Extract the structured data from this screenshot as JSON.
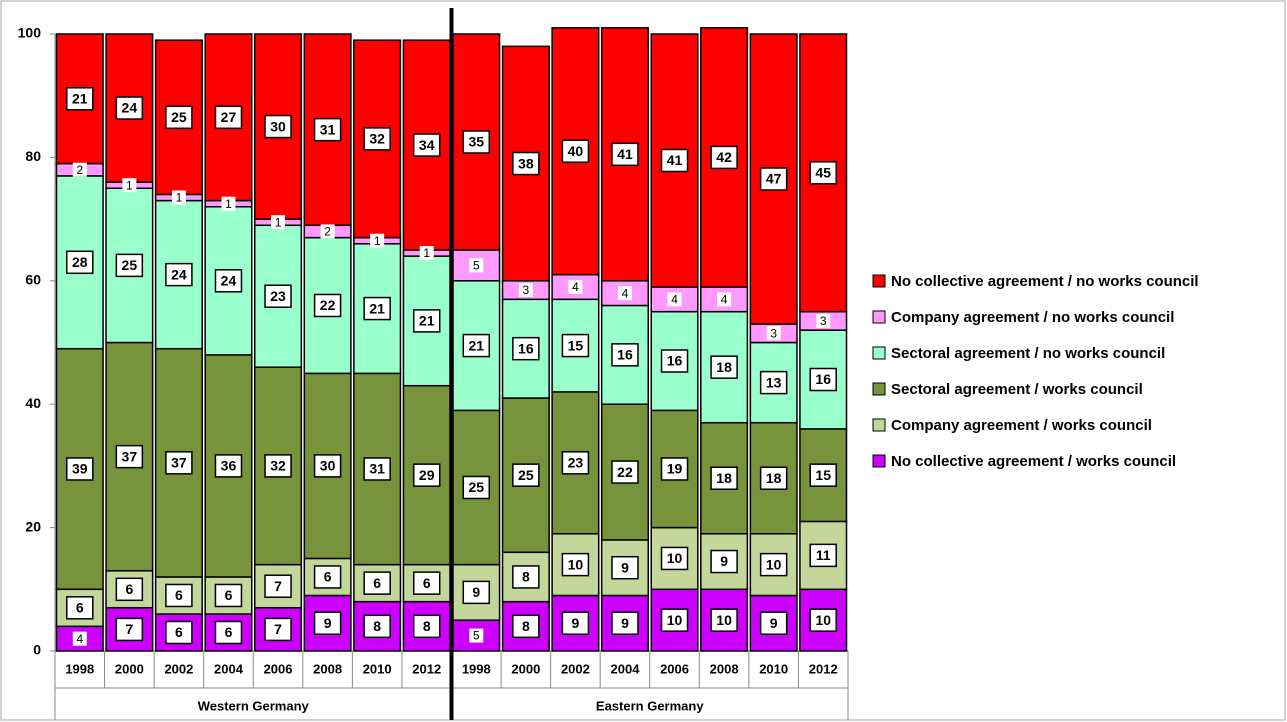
{
  "chart_data": {
    "type": "stacked-bar",
    "categories": [
      "1998",
      "2000",
      "2002",
      "2004",
      "2006",
      "2008",
      "2010",
      "2012",
      "1998",
      "2000",
      "2002",
      "2004",
      "2006",
      "2008",
      "2010",
      "2012"
    ],
    "groups": [
      "Western Germany",
      "Eastern Germany"
    ],
    "ylim": [
      0,
      100
    ],
    "yticks": [
      0,
      20,
      40,
      60,
      80,
      100
    ],
    "legend": "right",
    "series": [
      {
        "name": "No collective agreement / works council",
        "color": "#cc00ff",
        "values": [
          4,
          7,
          6,
          6,
          7,
          9,
          8,
          8,
          5,
          8,
          9,
          9,
          10,
          10,
          9,
          10
        ]
      },
      {
        "name": "Company agreement / works council",
        "color": "#c4d79b",
        "values": [
          6,
          6,
          6,
          6,
          7,
          6,
          6,
          6,
          9,
          8,
          10,
          9,
          10,
          9,
          10,
          11
        ]
      },
      {
        "name": "Sectoral agreement / works council",
        "color": "#77933c",
        "values": [
          39,
          37,
          37,
          36,
          32,
          30,
          31,
          29,
          25,
          25,
          23,
          22,
          19,
          18,
          18,
          15
        ]
      },
      {
        "name": "Sectoral agreement / no works council",
        "color": "#99ffcc",
        "values": [
          28,
          25,
          24,
          24,
          23,
          22,
          21,
          21,
          21,
          16,
          15,
          16,
          16,
          18,
          13,
          16
        ]
      },
      {
        "name": "Company agreement / no works council",
        "color": "#ff99ff",
        "values": [
          2,
          1,
          1,
          1,
          1,
          2,
          1,
          1,
          5,
          3,
          4,
          4,
          4,
          4,
          3,
          3
        ]
      },
      {
        "name": "No collective agreement / no works council",
        "color": "#ff0000",
        "values": [
          21,
          24,
          25,
          27,
          30,
          31,
          32,
          34,
          35,
          38,
          40,
          41,
          41,
          42,
          47,
          45
        ]
      }
    ]
  }
}
